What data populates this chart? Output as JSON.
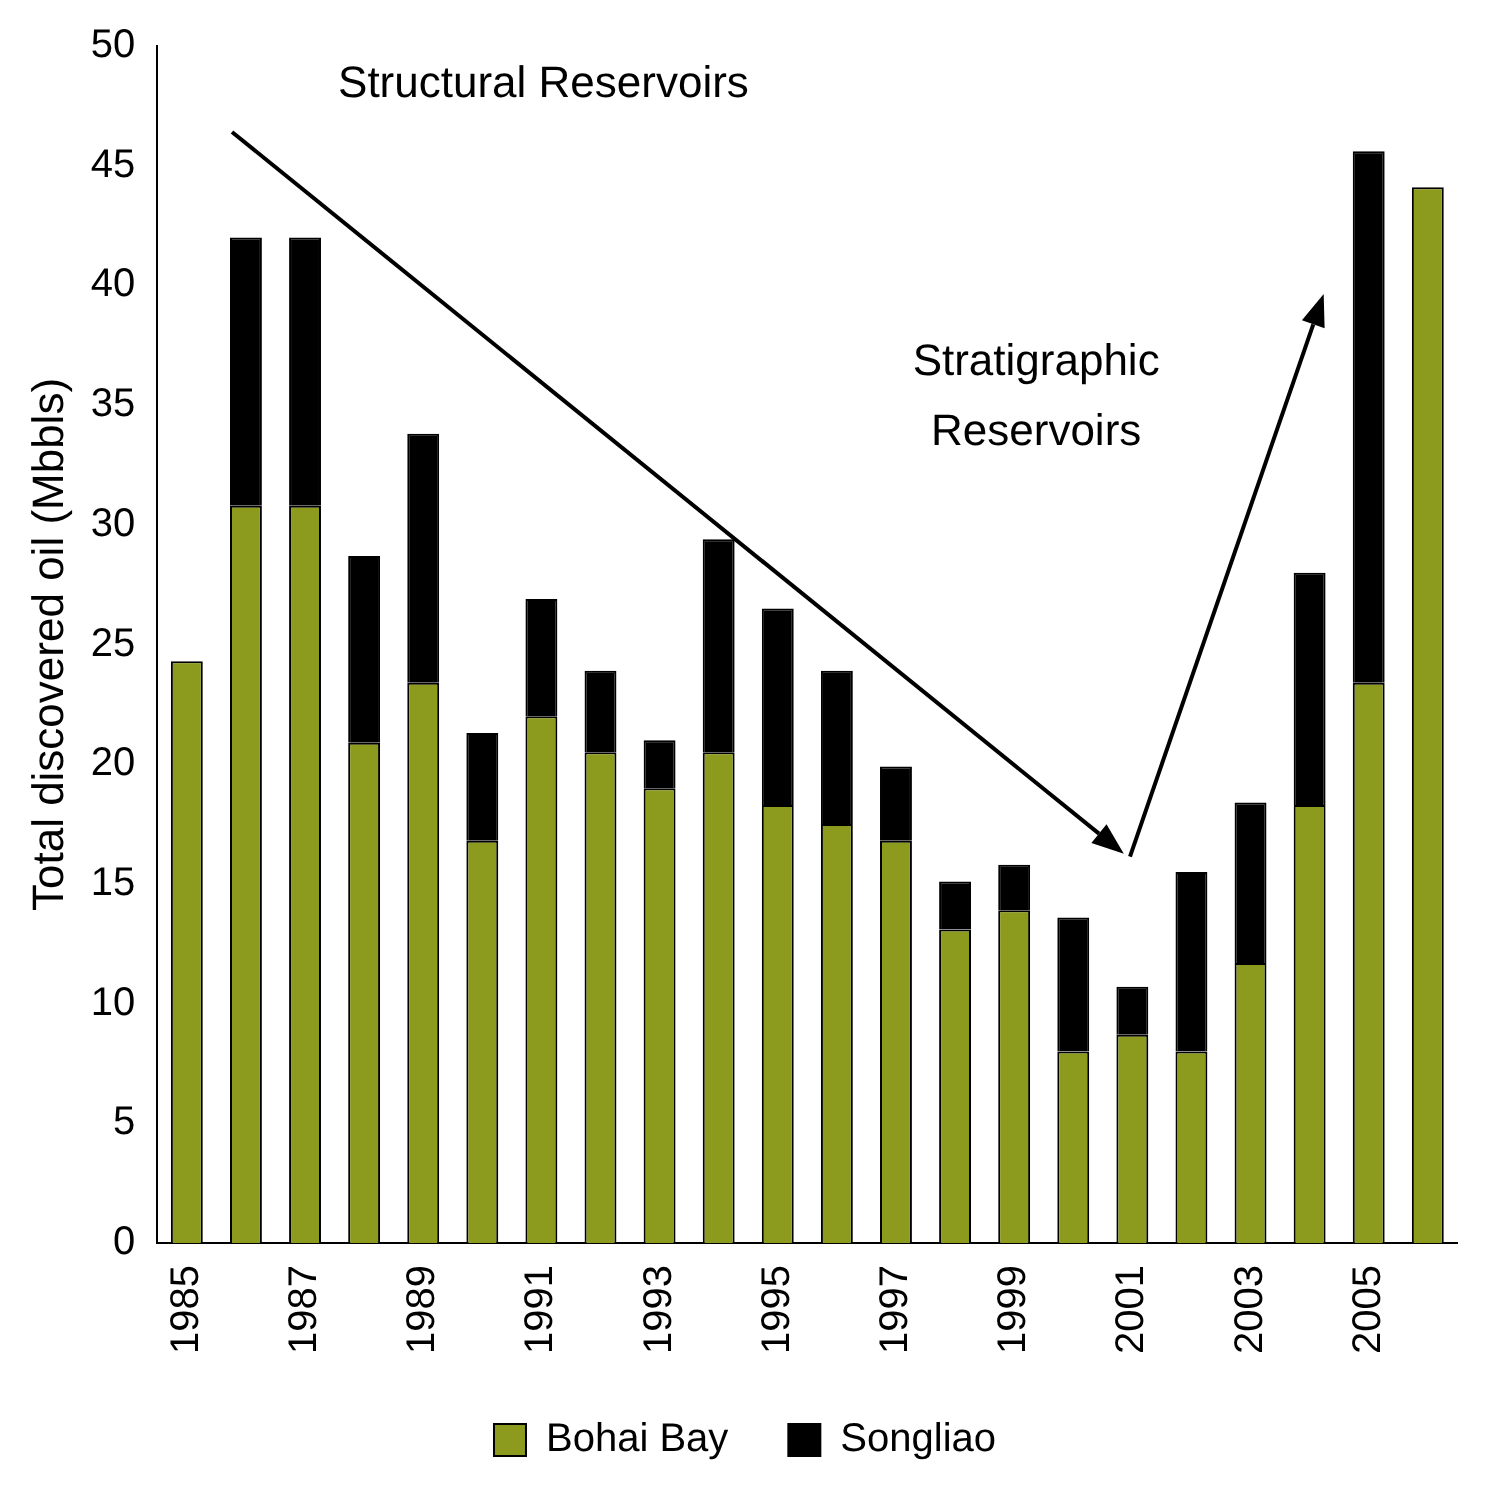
{
  "chart_data": {
    "type": "bar",
    "stacked": true,
    "ylabel": "Total discovered oil (Mbbls)",
    "categories": [
      "1985",
      null,
      "1987",
      null,
      "1989",
      null,
      "1991",
      null,
      "1993",
      null,
      "1995",
      null,
      "1997",
      null,
      "1999",
      null,
      "2001",
      null,
      "2003",
      null,
      "2005",
      null
    ],
    "series": [
      {
        "name": "Bohai Bay",
        "color": "#8c9a1e",
        "values": [
          24.3,
          30.8,
          30.8,
          20.9,
          23.4,
          16.8,
          22,
          20.5,
          19,
          20.5,
          18.3,
          17.5,
          16.8,
          13.1,
          13.9,
          8,
          8.7,
          8,
          11.7,
          18.3,
          23.4,
          44.1
        ]
      },
      {
        "name": "Songliao",
        "color": "#000000",
        "values": [
          0,
          11.2,
          11.2,
          7.8,
          10.4,
          4.5,
          4.9,
          3.4,
          2,
          8.9,
          8.2,
          6.4,
          3.1,
          2,
          1.9,
          5.6,
          2,
          7.5,
          6.7,
          9.7,
          22.2,
          0
        ]
      }
    ],
    "ylim": [
      0,
      50
    ],
    "yticks": [
      0,
      5,
      10,
      15,
      20,
      25,
      30,
      35,
      40,
      45,
      50
    ],
    "grid": false,
    "legend": "bottom",
    "annotations": [
      "Structural Reservoirs",
      "Stratigraphic Reservoirs"
    ]
  }
}
